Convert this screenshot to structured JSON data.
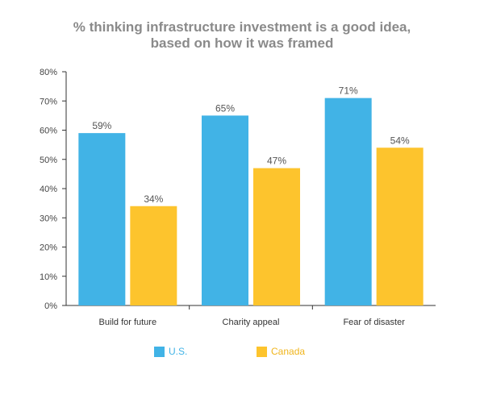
{
  "chart_data": {
    "type": "bar",
    "title_lines": [
      "% thinking infrastructure investment is a good idea,",
      "based on how it was framed"
    ],
    "categories": [
      "Build for future",
      "Charity appeal",
      "Fear of disaster"
    ],
    "series": [
      {
        "name": "U.S.",
        "values": [
          59,
          65,
          71
        ],
        "color": "#41b3e6"
      },
      {
        "name": "Canada",
        "values": [
          34,
          47,
          54
        ],
        "color": "#fdc42d"
      }
    ],
    "value_suffix": "%",
    "ylim": [
      0,
      80
    ],
    "yticks": [
      0,
      10,
      20,
      30,
      40,
      50,
      60,
      70,
      80
    ],
    "ytick_suffix": "%",
    "grid": false,
    "legend_position": "bottom"
  }
}
